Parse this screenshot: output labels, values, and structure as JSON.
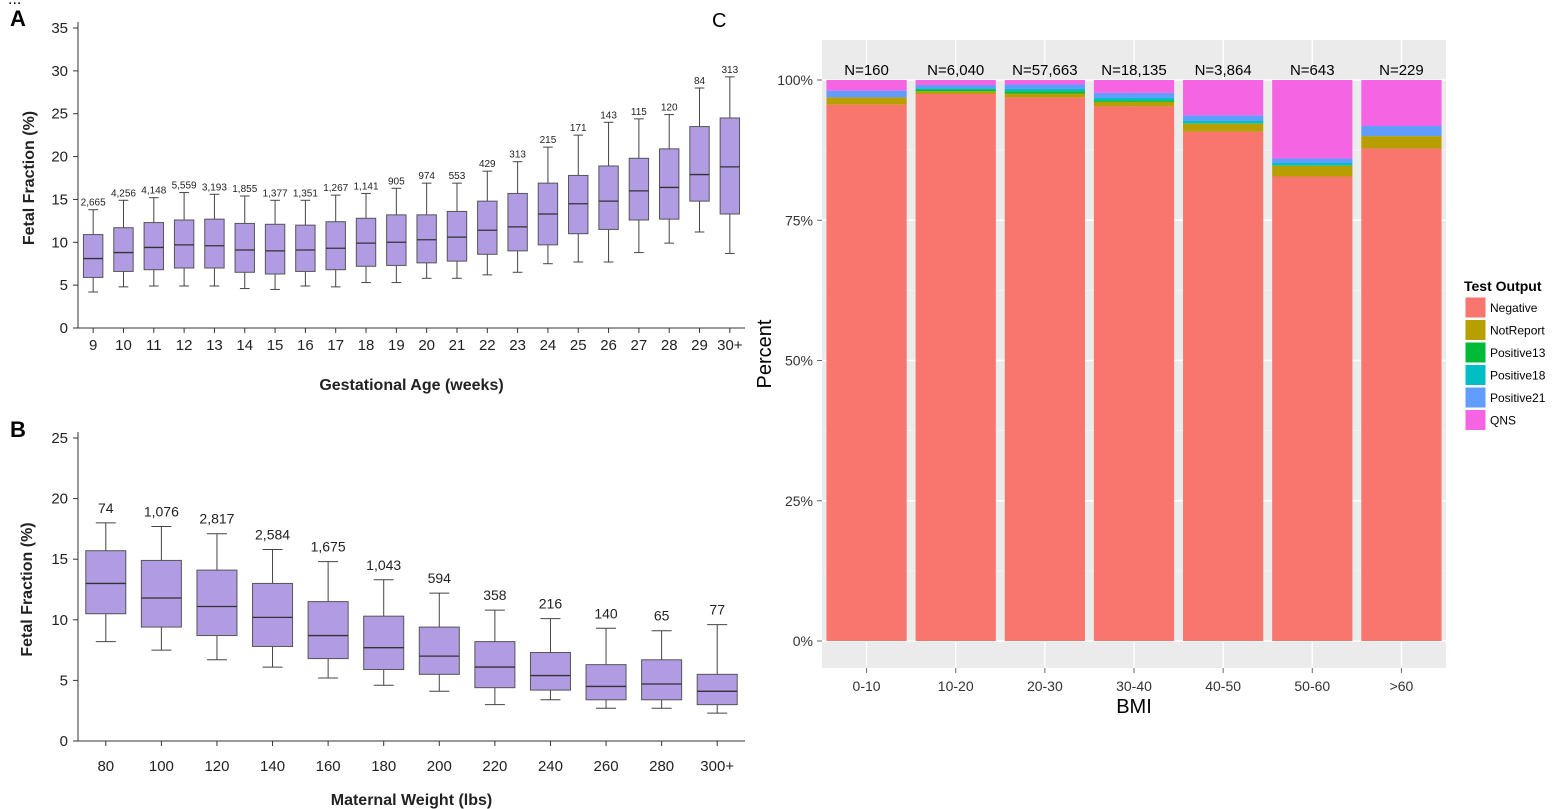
{
  "caption_top": "...",
  "chart_data": [
    {
      "panel": "A",
      "type": "box",
      "xlabel": "Gestational Age (weeks)",
      "ylabel": "Fetal Fraction (%)",
      "ylim": [
        0,
        35
      ],
      "yticks": [
        0,
        5,
        10,
        15,
        20,
        25,
        30,
        35
      ],
      "box_color": "#b19be3",
      "categories": [
        "9",
        "10",
        "11",
        "12",
        "13",
        "14",
        "15",
        "16",
        "17",
        "18",
        "19",
        "20",
        "21",
        "22",
        "23",
        "24",
        "25",
        "26",
        "27",
        "28",
        "29",
        "30+"
      ],
      "counts": [
        "2,665",
        "4,256",
        "4,148",
        "5,559",
        "3,193",
        "1,855",
        "1,377",
        "1,351",
        "1,267",
        "1,141",
        "905",
        "974",
        "553",
        "429",
        "313",
        "215",
        "171",
        "143",
        "115",
        "120",
        "84",
        "313"
      ],
      "boxes": [
        {
          "low": 4.2,
          "q1": 5.9,
          "median": 8.1,
          "q3": 10.9,
          "high": 13.8
        },
        {
          "low": 4.8,
          "q1": 6.6,
          "median": 8.8,
          "q3": 11.7,
          "high": 14.9
        },
        {
          "low": 4.9,
          "q1": 6.8,
          "median": 9.4,
          "q3": 12.3,
          "high": 15.2
        },
        {
          "low": 4.9,
          "q1": 7.0,
          "median": 9.7,
          "q3": 12.6,
          "high": 15.8
        },
        {
          "low": 4.9,
          "q1": 7.0,
          "median": 9.6,
          "q3": 12.7,
          "high": 15.6
        },
        {
          "low": 4.6,
          "q1": 6.5,
          "median": 9.1,
          "q3": 12.2,
          "high": 15.4
        },
        {
          "low": 4.5,
          "q1": 6.3,
          "median": 9.0,
          "q3": 12.1,
          "high": 14.9
        },
        {
          "low": 4.9,
          "q1": 6.6,
          "median": 9.1,
          "q3": 12.0,
          "high": 14.9
        },
        {
          "low": 4.8,
          "q1": 6.8,
          "median": 9.3,
          "q3": 12.4,
          "high": 15.5
        },
        {
          "low": 5.3,
          "q1": 7.2,
          "median": 9.9,
          "q3": 12.8,
          "high": 15.7
        },
        {
          "low": 5.3,
          "q1": 7.3,
          "median": 10.0,
          "q3": 13.2,
          "high": 16.3
        },
        {
          "low": 5.8,
          "q1": 7.6,
          "median": 10.3,
          "q3": 13.2,
          "high": 16.9
        },
        {
          "low": 5.8,
          "q1": 7.8,
          "median": 10.6,
          "q3": 13.6,
          "high": 16.9
        },
        {
          "low": 6.2,
          "q1": 8.6,
          "median": 11.4,
          "q3": 14.8,
          "high": 18.3
        },
        {
          "low": 6.5,
          "q1": 9.0,
          "median": 11.8,
          "q3": 15.7,
          "high": 19.4
        },
        {
          "low": 7.5,
          "q1": 9.7,
          "median": 13.3,
          "q3": 16.9,
          "high": 21.1
        },
        {
          "low": 7.7,
          "q1": 11.0,
          "median": 14.5,
          "q3": 17.8,
          "high": 22.5
        },
        {
          "low": 7.7,
          "q1": 11.5,
          "median": 14.8,
          "q3": 18.9,
          "high": 24.0
        },
        {
          "low": 8.8,
          "q1": 12.6,
          "median": 16.0,
          "q3": 19.8,
          "high": 24.4
        },
        {
          "low": 9.9,
          "q1": 12.7,
          "median": 16.4,
          "q3": 20.9,
          "high": 24.9
        },
        {
          "low": 11.2,
          "q1": 14.8,
          "median": 17.9,
          "q3": 23.5,
          "high": 28.0
        },
        {
          "low": 8.7,
          "q1": 13.3,
          "median": 18.8,
          "q3": 24.5,
          "high": 29.3
        }
      ]
    },
    {
      "panel": "B",
      "type": "box",
      "xlabel": "Maternal Weight (lbs)",
      "ylabel": "Fetal Fraction (%)",
      "ylim": [
        0,
        25
      ],
      "yticks": [
        0,
        5,
        10,
        15,
        20,
        25
      ],
      "box_color": "#b19be3",
      "categories": [
        "80",
        "100",
        "120",
        "140",
        "160",
        "180",
        "200",
        "220",
        "240",
        "260",
        "280",
        "300+"
      ],
      "counts": [
        "74",
        "1,076",
        "2,817",
        "2,584",
        "1,675",
        "1,043",
        "594",
        "358",
        "216",
        "140",
        "65",
        "77"
      ],
      "boxes": [
        {
          "low": 8.2,
          "q1": 10.5,
          "median": 13.0,
          "q3": 15.7,
          "high": 18.0
        },
        {
          "low": 7.5,
          "q1": 9.4,
          "median": 11.8,
          "q3": 14.9,
          "high": 17.7
        },
        {
          "low": 6.7,
          "q1": 8.7,
          "median": 11.1,
          "q3": 14.1,
          "high": 17.1
        },
        {
          "low": 6.1,
          "q1": 7.8,
          "median": 10.2,
          "q3": 13.0,
          "high": 15.8
        },
        {
          "low": 5.2,
          "q1": 6.8,
          "median": 8.7,
          "q3": 11.5,
          "high": 14.8
        },
        {
          "low": 4.6,
          "q1": 5.9,
          "median": 7.7,
          "q3": 10.3,
          "high": 13.3
        },
        {
          "low": 4.1,
          "q1": 5.5,
          "median": 7.0,
          "q3": 9.4,
          "high": 12.2
        },
        {
          "low": 3.0,
          "q1": 4.4,
          "median": 6.1,
          "q3": 8.2,
          "high": 10.8
        },
        {
          "low": 3.4,
          "q1": 4.2,
          "median": 5.4,
          "q3": 7.3,
          "high": 10.1
        },
        {
          "low": 2.7,
          "q1": 3.4,
          "median": 4.5,
          "q3": 6.3,
          "high": 9.3
        },
        {
          "low": 2.7,
          "q1": 3.4,
          "median": 4.7,
          "q3": 6.7,
          "high": 9.1
        },
        {
          "low": 2.3,
          "q1": 3.0,
          "median": 4.1,
          "q3": 5.5,
          "high": 9.6
        }
      ]
    },
    {
      "panel": "C",
      "type": "stacked-bar",
      "xlabel": "BMI",
      "ylabel": "Percent",
      "ylim": [
        0,
        100
      ],
      "yticks": [
        "0%",
        "25%",
        "50%",
        "75%",
        "100%"
      ],
      "panel_background": "#ebebeb",
      "categories": [
        "0-10",
        "10-20",
        "20-30",
        "30-40",
        "40-50",
        "50-60",
        ">60"
      ],
      "counts": [
        "N=160",
        "N=6,040",
        "N=57,663",
        "N=18,135",
        "N=3,864",
        "N=643",
        "N=229"
      ],
      "legend_title": "Test Output",
      "legend_position": "right",
      "series": [
        {
          "name": "Negative",
          "color": "#f8766d",
          "values": [
            95.6,
            97.5,
            96.9,
            95.3,
            90.8,
            82.8,
            87.8
          ]
        },
        {
          "name": "NotReport",
          "color": "#b79f00",
          "values": [
            1.3,
            0.5,
            0.7,
            0.8,
            1.4,
            1.9,
            2.2
          ]
        },
        {
          "name": "Positive13",
          "color": "#00ba38",
          "values": [
            0.0,
            0.3,
            0.4,
            0.3,
            0.1,
            0.1,
            0.0
          ]
        },
        {
          "name": "Positive18",
          "color": "#00bfc4",
          "values": [
            0.0,
            0.2,
            0.4,
            0.4,
            0.4,
            0.4,
            0.0
          ]
        },
        {
          "name": "Positive21",
          "color": "#619cff",
          "values": [
            1.2,
            0.6,
            0.8,
            0.9,
            1.0,
            0.8,
            1.8
          ]
        },
        {
          "name": "QNS",
          "color": "#f564e3",
          "values": [
            1.9,
            0.9,
            0.8,
            2.3,
            6.3,
            14.0,
            8.2
          ]
        }
      ]
    }
  ]
}
